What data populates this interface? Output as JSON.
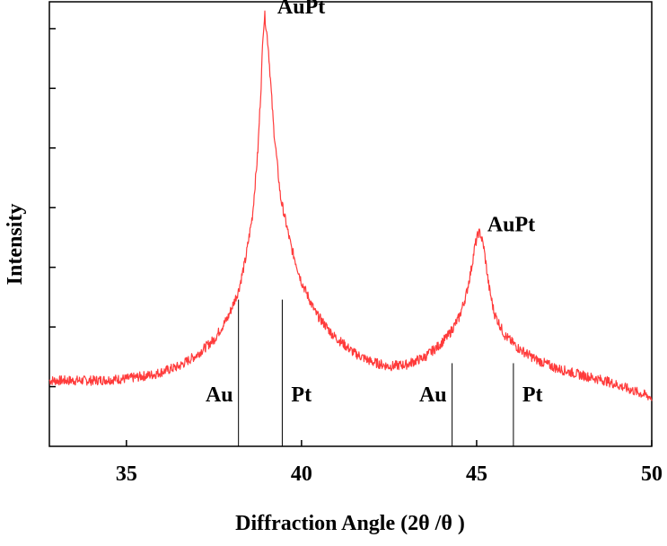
{
  "chart_data": {
    "type": "line",
    "title": "",
    "xlabel": "Diffraction Angle (2θ /θ )",
    "ylabel": "Intensity",
    "xlim": [
      32.8,
      50
    ],
    "ylim": [
      0,
      1
    ],
    "x_ticks": [
      35,
      40,
      45,
      50
    ],
    "x_tick_labels": [
      "35",
      "40",
      "45",
      "50"
    ],
    "y_tick_count": 7,
    "y_tick_labels_shown": false,
    "grid": false,
    "legend": "none",
    "line_color": "#ff3b3b",
    "reference_line_color": "#000000",
    "series": [
      {
        "x": [
          32.8,
          34.0,
          35.0,
          35.8,
          36.5,
          37.0,
          37.5,
          37.9,
          38.2,
          38.4,
          38.6,
          38.75,
          38.85,
          38.9,
          38.95,
          39.05,
          39.2,
          39.4,
          39.7,
          40.0,
          40.4,
          40.9,
          41.5,
          42.0,
          42.5,
          43.0,
          43.5,
          43.9,
          44.2,
          44.5,
          44.7,
          44.85,
          44.95,
          45.05,
          45.1,
          45.2,
          45.35,
          45.5,
          45.8,
          46.2,
          46.7,
          47.3,
          48.0,
          48.7,
          49.3,
          50.0
        ],
        "y": [
          0.148,
          0.148,
          0.152,
          0.162,
          0.18,
          0.205,
          0.24,
          0.29,
          0.35,
          0.42,
          0.52,
          0.66,
          0.82,
          0.93,
          0.97,
          0.9,
          0.72,
          0.56,
          0.45,
          0.37,
          0.3,
          0.25,
          0.21,
          0.19,
          0.18,
          0.184,
          0.2,
          0.225,
          0.25,
          0.29,
          0.34,
          0.4,
          0.45,
          0.48,
          0.48,
          0.45,
          0.36,
          0.3,
          0.25,
          0.22,
          0.195,
          0.175,
          0.16,
          0.147,
          0.13,
          0.11
        ]
      }
    ],
    "reference_lines": [
      {
        "label": "Au",
        "x": 38.2,
        "top": 0.33
      },
      {
        "label": "Pt",
        "x": 39.45,
        "top": 0.33
      },
      {
        "label": "Au",
        "x": 44.3,
        "top": 0.187
      },
      {
        "label": "Pt",
        "x": 46.05,
        "top": 0.187
      }
    ],
    "peak_annotations": [
      {
        "label": "AuPt",
        "x": 38.95,
        "y": 0.97
      },
      {
        "label": "AuPt",
        "x": 45.1,
        "y": 0.48
      }
    ]
  }
}
